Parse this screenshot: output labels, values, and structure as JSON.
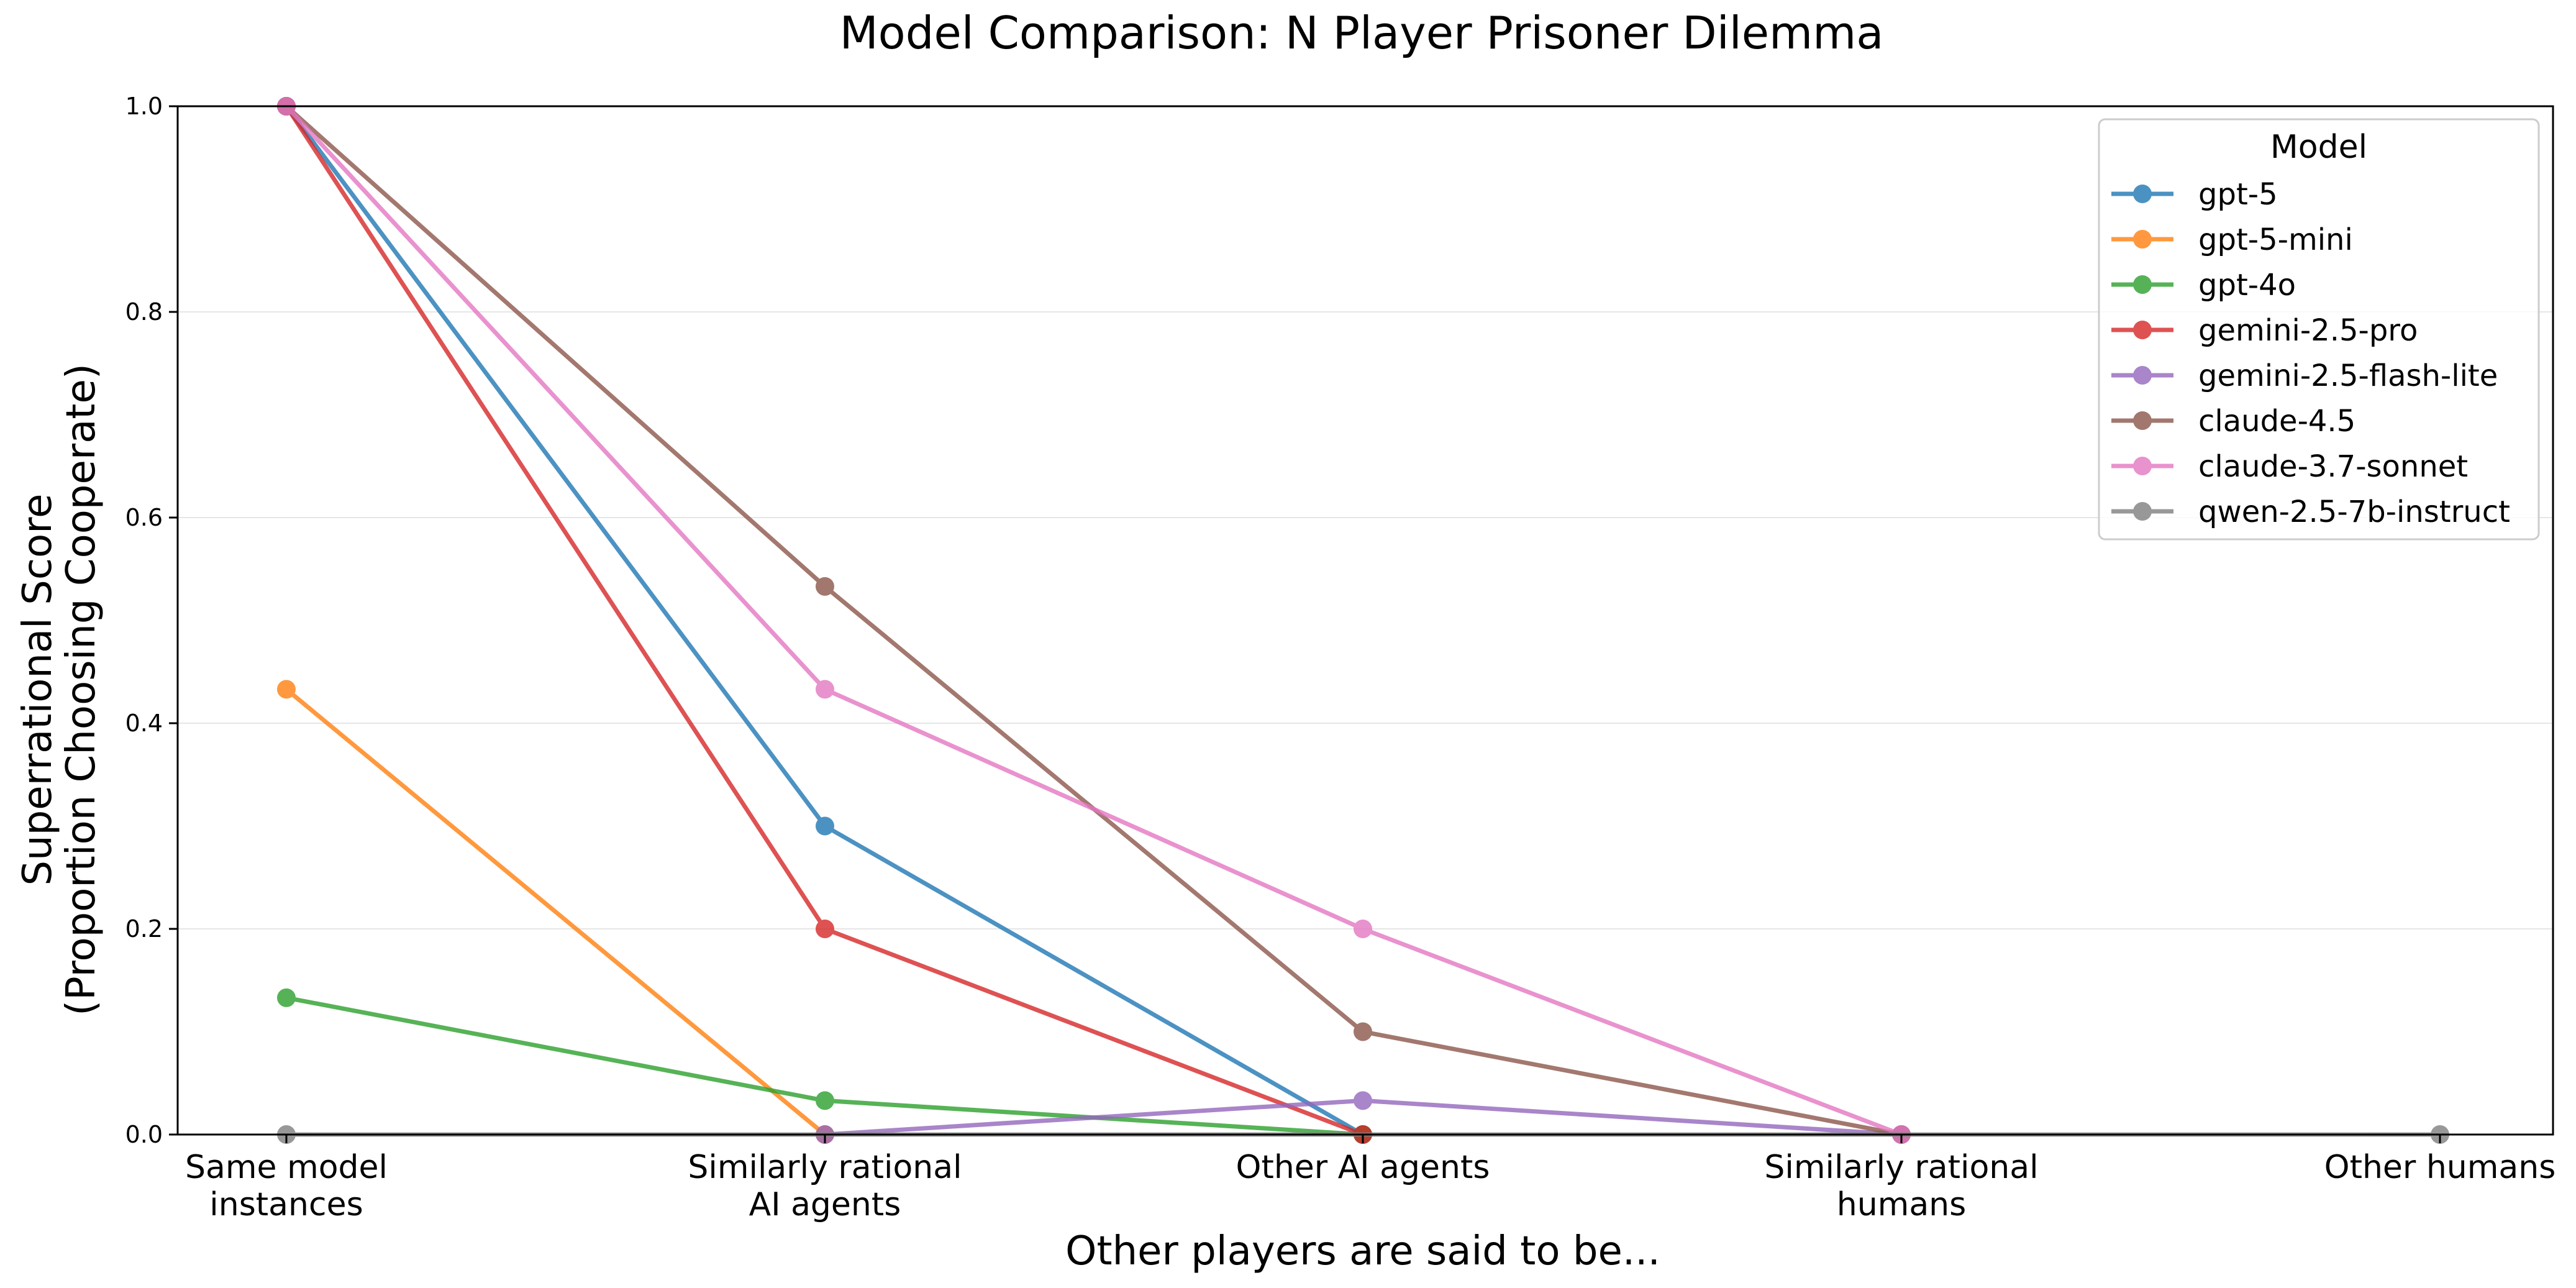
{
  "chart_data": {
    "type": "line",
    "title": "Model Comparison: N Player Prisoner Dilemma",
    "xlabel": "Other players are said to be...",
    "ylabel_lines": [
      "Superrational Score",
      "(Proportion Choosing Cooperate)"
    ],
    "categories": [
      [
        "Same model",
        "instances"
      ],
      [
        "Similarly rational",
        "AI agents"
      ],
      [
        "Other AI agents"
      ],
      [
        "Similarly rational",
        "humans"
      ],
      [
        "Other humans"
      ]
    ],
    "ylim": [
      0,
      1
    ],
    "yticks": [
      "0.0",
      "0.2",
      "0.4",
      "0.6",
      "0.8",
      "1.0"
    ],
    "grid": "horizontal",
    "legend": {
      "title": "Model",
      "placement": "top-right"
    },
    "series": [
      {
        "name": "gpt-5",
        "color": "#1f77b4",
        "values": [
          1.0,
          0.3,
          0.0,
          null,
          null
        ]
      },
      {
        "name": "gpt-5-mini",
        "color": "#ff7f0e",
        "values": [
          0.433,
          0.0,
          null,
          null,
          null
        ]
      },
      {
        "name": "gpt-4o",
        "color": "#2ca02c",
        "values": [
          0.133,
          0.033,
          0.0,
          null,
          null
        ]
      },
      {
        "name": "gemini-2.5-pro",
        "color": "#d62728",
        "values": [
          1.0,
          0.2,
          0.0,
          null,
          null
        ]
      },
      {
        "name": "gemini-2.5-flash-lite",
        "color": "#9467bd",
        "values": [
          null,
          0.0,
          0.033,
          0.0,
          null
        ]
      },
      {
        "name": "claude-4.5",
        "color": "#8c564b",
        "values": [
          1.0,
          0.533,
          0.1,
          0.0,
          null
        ]
      },
      {
        "name": "claude-3.7-sonnet",
        "color": "#e377c2",
        "values": [
          1.0,
          0.433,
          0.2,
          0.0,
          null
        ]
      },
      {
        "name": "qwen-2.5-7b-instruct",
        "color": "#7f7f7f",
        "values": [
          0.0,
          null,
          null,
          null,
          0.0
        ]
      }
    ]
  }
}
